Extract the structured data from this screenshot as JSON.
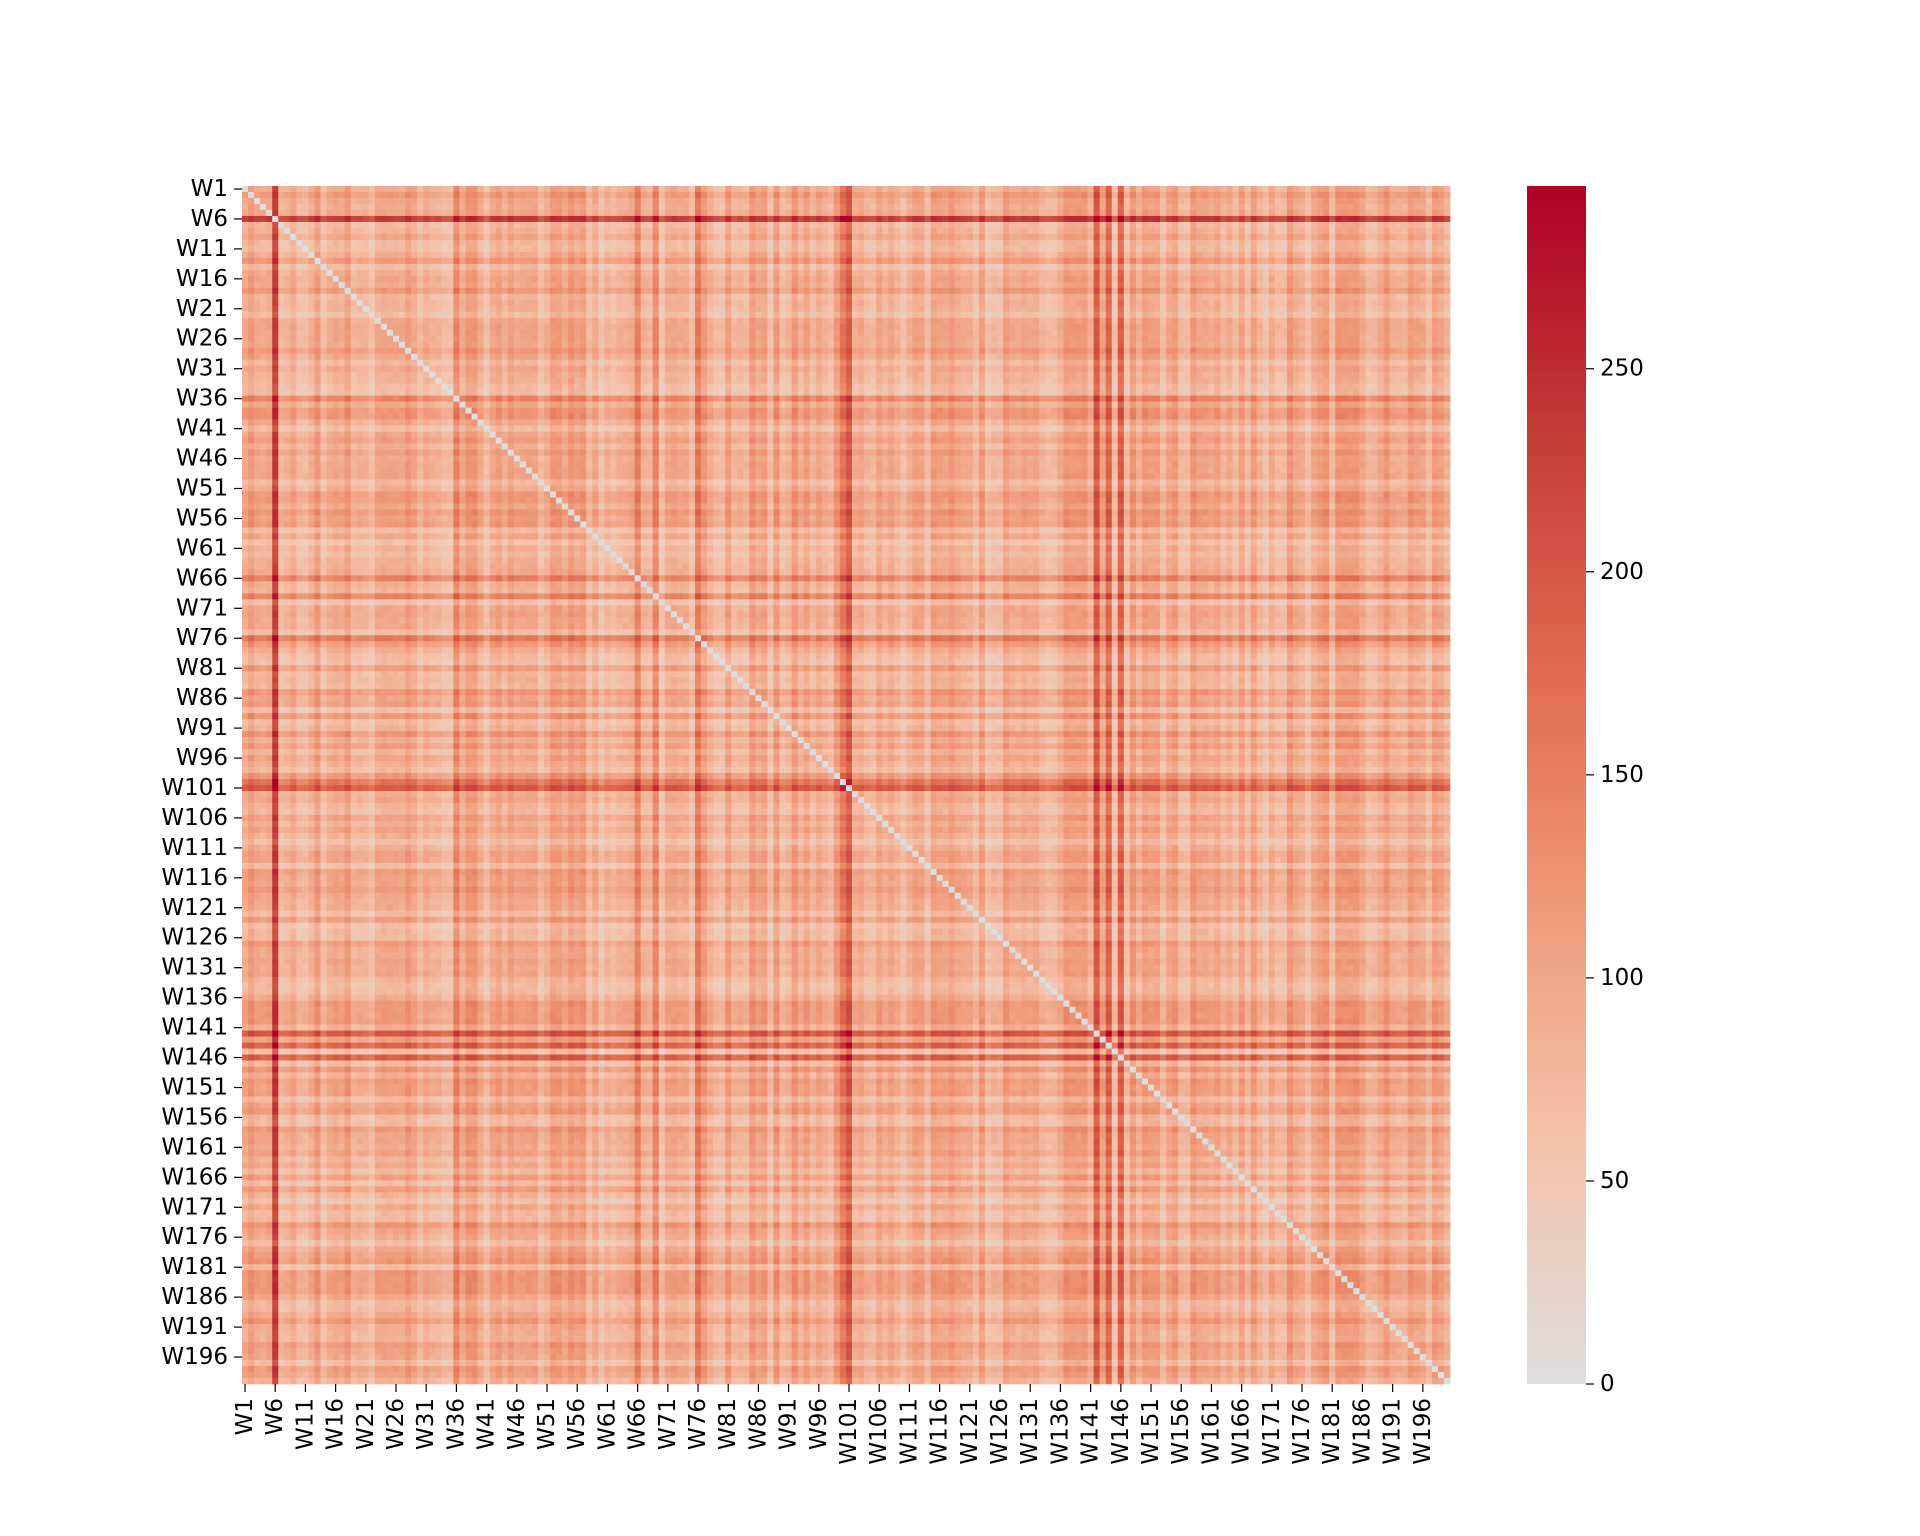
{
  "chart_data": {
    "type": "heatmap",
    "title": "",
    "xlabel": "",
    "ylabel": "",
    "n_rows": 200,
    "n_cols": 200,
    "row_prefix": "W",
    "col_prefix": "W",
    "x_tick_labels": [
      "W1",
      "W6",
      "W11",
      "W16",
      "W21",
      "W26",
      "W31",
      "W36",
      "W41",
      "W46",
      "W51",
      "W56",
      "W61",
      "W66",
      "W71",
      "W76",
      "W81",
      "W86",
      "W91",
      "W96",
      "W101",
      "W106",
      "W111",
      "W116",
      "W121",
      "W126",
      "W131",
      "W136",
      "W141",
      "W146",
      "W151",
      "W156",
      "W161",
      "W166",
      "W171",
      "W176",
      "W181",
      "W186",
      "W191",
      "W196"
    ],
    "y_tick_labels": [
      "W1",
      "W6",
      "W11",
      "W16",
      "W21",
      "W26",
      "W31",
      "W36",
      "W41",
      "W46",
      "W51",
      "W56",
      "W61",
      "W66",
      "W71",
      "W76",
      "W81",
      "W86",
      "W91",
      "W96",
      "W101",
      "W106",
      "W111",
      "W116",
      "W121",
      "W126",
      "W131",
      "W136",
      "W141",
      "W146",
      "W151",
      "W156",
      "W161",
      "W166",
      "W171",
      "W176",
      "W181",
      "W186",
      "W191",
      "W196"
    ],
    "diagonal_value": 0,
    "symmetric": true,
    "value_range": [
      0,
      295
    ],
    "colormap": [
      "#dddddd",
      "#f4c3ab",
      "#ef9979",
      "#e0694f",
      "#c23a36",
      "#b00026"
    ],
    "colorbar": {
      "range": [
        0,
        295
      ],
      "ticks": [
        0,
        50,
        100,
        150,
        200,
        250
      ],
      "tick_labels": [
        "0",
        "50",
        "100",
        "150",
        "200",
        "250"
      ]
    },
    "row_strength_estimates": {
      "W6": 185,
      "W101": 150,
      "W142": 150,
      "W146": 140,
      "W76": 110,
      "W100": 115,
      "W144": 135,
      "W66": 100,
      "W69": 95,
      "W36": 95
    }
  }
}
